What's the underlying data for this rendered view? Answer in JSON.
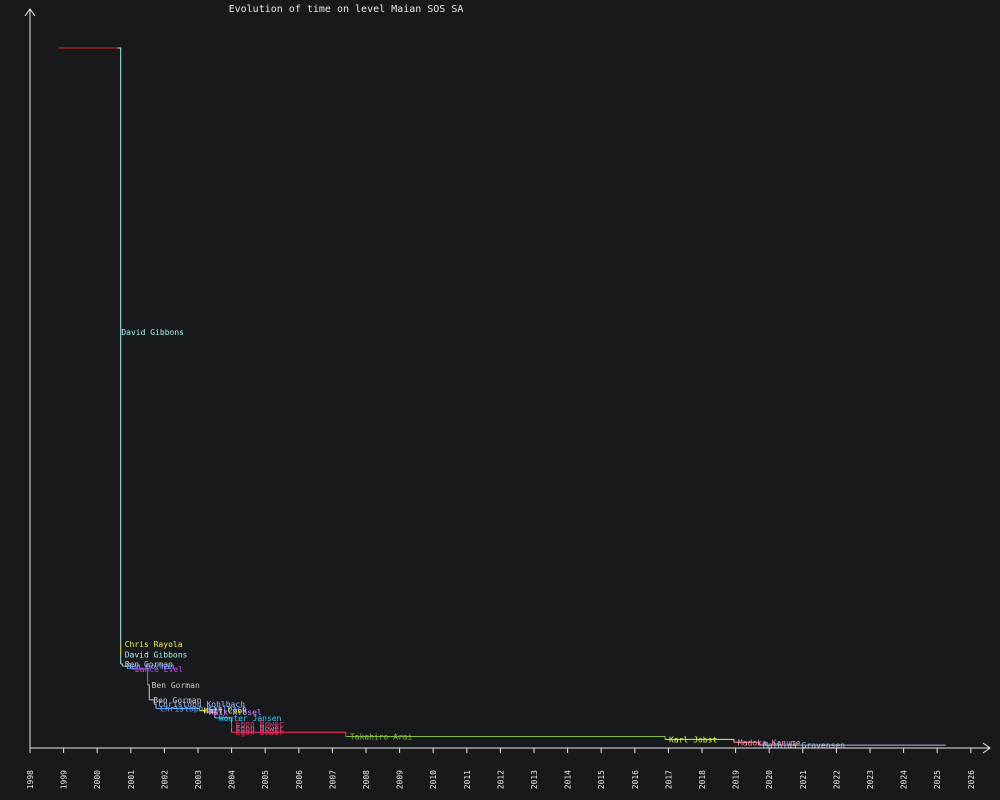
{
  "chart_data": {
    "type": "line",
    "title": "Evolution of time on level Maian SOS SA",
    "xlabel": "",
    "ylabel": "",
    "x_ticks": [
      "1998",
      "1999",
      "2000",
      "2001",
      "2002",
      "2003",
      "2004",
      "2005",
      "2006",
      "2007",
      "2008",
      "2009",
      "2010",
      "2011",
      "2012",
      "2013",
      "2014",
      "2015",
      "2016",
      "2017",
      "2018",
      "2019",
      "2020",
      "2021",
      "2022",
      "2023",
      "2024",
      "2025",
      "2026"
    ],
    "xlim": [
      1998,
      2026.5
    ],
    "ylim": [
      0,
      1
    ],
    "grid": false,
    "y_tick_labels": false,
    "initial_segment": {
      "x": [
        1998.85,
        2000.6
      ],
      "y": 0.975,
      "color": "#cc2222"
    },
    "records": [
      {
        "name": "David Gibbons",
        "x": 2000.6,
        "y": 0.975,
        "color": "#aaf0f0"
      },
      {
        "name": "Chris Rayola",
        "x": 2000.7,
        "y": 0.145,
        "color": "#f0f060"
      },
      {
        "name": "David Gibbons",
        "x": 2000.7,
        "y": 0.13,
        "color": "#aaf0f0"
      },
      {
        "name": "Ben Gorman",
        "x": 2000.7,
        "y": 0.117,
        "color": "#c8c8c8"
      },
      {
        "name": "Ben Gorman",
        "x": 2000.75,
        "y": 0.114,
        "color": "#66aaff"
      },
      {
        "name": "Lance Evel",
        "x": 2001.0,
        "y": 0.11,
        "color": "#cc44ff"
      },
      {
        "name": "Ben Gorman",
        "x": 2001.5,
        "y": 0.088,
        "color": "#c8c8c8"
      },
      {
        "name": "Ben Gorman",
        "x": 2001.55,
        "y": 0.067,
        "color": "#c8c8c8"
      },
      {
        "name": "Christoph Kohlbach",
        "x": 2001.7,
        "y": 0.061,
        "color": "#99bbff"
      },
      {
        "name": "Christoph Kohlbach",
        "x": 2001.75,
        "y": 0.055,
        "color": "#66aaff"
      },
      {
        "name": "Matt Cook",
        "x": 2003.05,
        "y": 0.052,
        "color": "#ffff44"
      },
      {
        "name": "Maik Krösel",
        "x": 2003.2,
        "y": 0.05,
        "color": "#cc88ff"
      },
      {
        "name": "Wouter Jansen",
        "x": 2003.5,
        "y": 0.042,
        "color": "#33ccff"
      },
      {
        "name": "Egon Bower",
        "x": 2004.0,
        "y": 0.034,
        "color": "#ee3377"
      },
      {
        "name": "Egon Bower",
        "x": 2004.0,
        "y": 0.028,
        "color": "#ff66aa"
      },
      {
        "name": "Egon Bower",
        "x": 2004.0,
        "y": 0.022,
        "color": "#ff3366"
      },
      {
        "name": "Takahiro Arai",
        "x": 2007.4,
        "y": 0.016,
        "color": "#88bb44"
      },
      {
        "name": "Karl Jobst",
        "x": 2016.9,
        "y": 0.012,
        "color": "#ccff44"
      },
      {
        "name": "Madoka Kanume",
        "x": 2018.95,
        "y": 0.008,
        "color": "#ff88aa"
      },
      {
        "name": "Mathias Gravensen",
        "x": 2019.7,
        "y": 0.004,
        "color": "#aabbdd"
      }
    ],
    "end_x": 2025.25
  }
}
